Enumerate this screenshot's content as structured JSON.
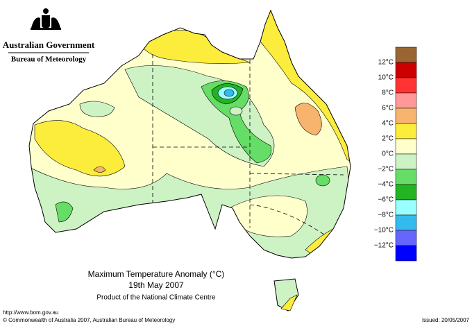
{
  "header": {
    "title": "Australian Government",
    "subtitle": "Bureau of Meteorology"
  },
  "map": {
    "title": "Maximum Temperature Anomaly (°C)",
    "date": "19th May 2007",
    "credit": "Product of the National Climate Centre"
  },
  "legend": {
    "colors": [
      "#996633",
      "#cc0000",
      "#ff3333",
      "#ff9999",
      "#f6b46e",
      "#fcec3c",
      "#ffffcc",
      "#cdf2c4",
      "#66dd66",
      "#22b422",
      "#99ffff",
      "#33bbee",
      "#6666ff",
      "#0000ff"
    ],
    "labels": [
      "12°C",
      "10°C",
      "8°C",
      "6°C",
      "4°C",
      "2°C",
      "0°C",
      "−2°C",
      "−4°C",
      "−6°C",
      "−8°C",
      "−10°C",
      "−12°C"
    ]
  },
  "footer": {
    "url": "http://www.bom.gov.au",
    "copyright": "© Commonwealth of Australia 2007, Australian Bureau of Meteorology",
    "issued": "Issued: 20/05/2007"
  }
}
